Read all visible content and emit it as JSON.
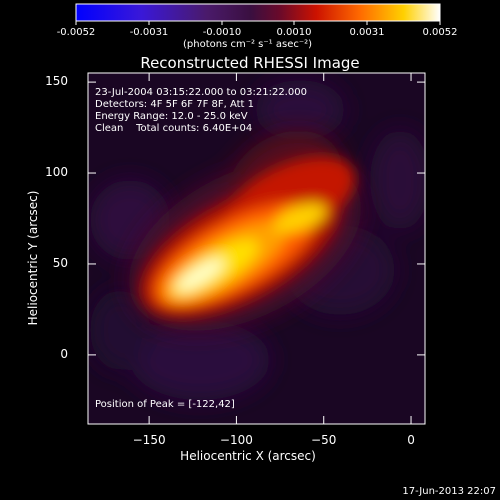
{
  "colorbar": {
    "ticks": [
      "-0.0052",
      "-0.0031",
      "-0.0010",
      "0.0010",
      "0.0031",
      "0.0052"
    ],
    "unit": "(photons cm⁻² s⁻¹ asec⁻²)",
    "range": [
      -0.0052,
      0.0052
    ]
  },
  "title": "Reconstructed RHESSI Image",
  "info": {
    "line1": "23-Jul-2004 03:15:22.000 to 03:21:22.000",
    "line2": "Detectors: 4F 5F 6F 7F 8F, Att 1",
    "line3": "Energy Range: 12.0 - 25.0 keV",
    "line4": "Clean    Total counts: 6.40E+04"
  },
  "peak_text": "Position of Peak = [-122,42]",
  "footer_date": "17-Jun-2013 22:07",
  "chart_data": {
    "type": "heatmap",
    "xlabel": "Heliocentric X (arcsec)",
    "ylabel": "Heliocentric Y (arcsec)",
    "xlim": [
      -185,
      8
    ],
    "ylim": [
      -38,
      155
    ],
    "xticks": [
      -150,
      -100,
      -50,
      0
    ],
    "yticks": [
      0,
      50,
      100,
      150
    ],
    "peak": [
      -122,
      42
    ],
    "colormap": "hot (black-purple-red-orange-yellow-white)"
  }
}
